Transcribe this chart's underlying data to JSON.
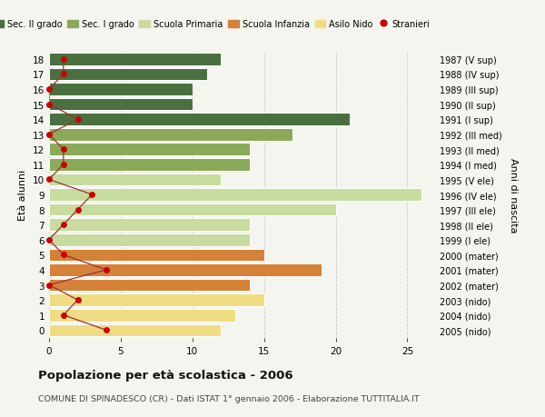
{
  "ages": [
    0,
    1,
    2,
    3,
    4,
    5,
    6,
    7,
    8,
    9,
    10,
    11,
    12,
    13,
    14,
    15,
    16,
    17,
    18
  ],
  "labels_right": [
    "2005 (nido)",
    "2004 (nido)",
    "2003 (nido)",
    "2002 (mater)",
    "2001 (mater)",
    "2000 (mater)",
    "1999 (I ele)",
    "1998 (II ele)",
    "1997 (III ele)",
    "1996 (IV ele)",
    "1995 (V ele)",
    "1994 (I med)",
    "1993 (II med)",
    "1992 (III med)",
    "1991 (I sup)",
    "1990 (II sup)",
    "1989 (III sup)",
    "1988 (IV sup)",
    "1987 (V sup)"
  ],
  "bar_values": [
    12,
    13,
    15,
    14,
    19,
    15,
    14,
    14,
    20,
    26,
    12,
    14,
    14,
    17,
    21,
    10,
    10,
    11,
    12
  ],
  "bar_colors": [
    "#f0dc82",
    "#f0dc82",
    "#f0dc82",
    "#d4823a",
    "#d4823a",
    "#d4823a",
    "#c8dca0",
    "#c8dca0",
    "#c8dca0",
    "#c8dca0",
    "#c8dca0",
    "#8aaa5a",
    "#8aaa5a",
    "#8aaa5a",
    "#4a7040",
    "#4a7040",
    "#4a7040",
    "#4a7040",
    "#4a7040"
  ],
  "stranieri_values": [
    4,
    1,
    2,
    0,
    4,
    1,
    0,
    1,
    2,
    3,
    0,
    1,
    1,
    0,
    2,
    0,
    0,
    1,
    1
  ],
  "title": "Popolazione per età scolastica - 2006",
  "subtitle": "COMUNE DI SPINADESCO (CR) - Dati ISTAT 1° gennaio 2006 - Elaborazione TUTTITALIA.IT",
  "ylabel_left": "Età alunni",
  "ylabel_right": "Anni di nascita",
  "xlim": [
    0,
    27
  ],
  "ylim": [
    -0.5,
    18.5
  ],
  "background_color": "#f5f5ef",
  "grid_color": "#cccccc",
  "bar_height": 0.82,
  "legend_items": [
    {
      "label": "Sec. II grado",
      "color": "#4a7040"
    },
    {
      "label": "Sec. I grado",
      "color": "#8aaa5a"
    },
    {
      "label": "Scuola Primaria",
      "color": "#c8dca0"
    },
    {
      "label": "Scuola Infanzia",
      "color": "#d4823a"
    },
    {
      "label": "Asilo Nido",
      "color": "#f0dc82"
    },
    {
      "label": "Stranieri",
      "color": "#cc0000"
    }
  ],
  "xticks": [
    0,
    5,
    10,
    15,
    20,
    25
  ],
  "stranieri_line_color": "#993333",
  "stranieri_dot_color": "#cc0000"
}
